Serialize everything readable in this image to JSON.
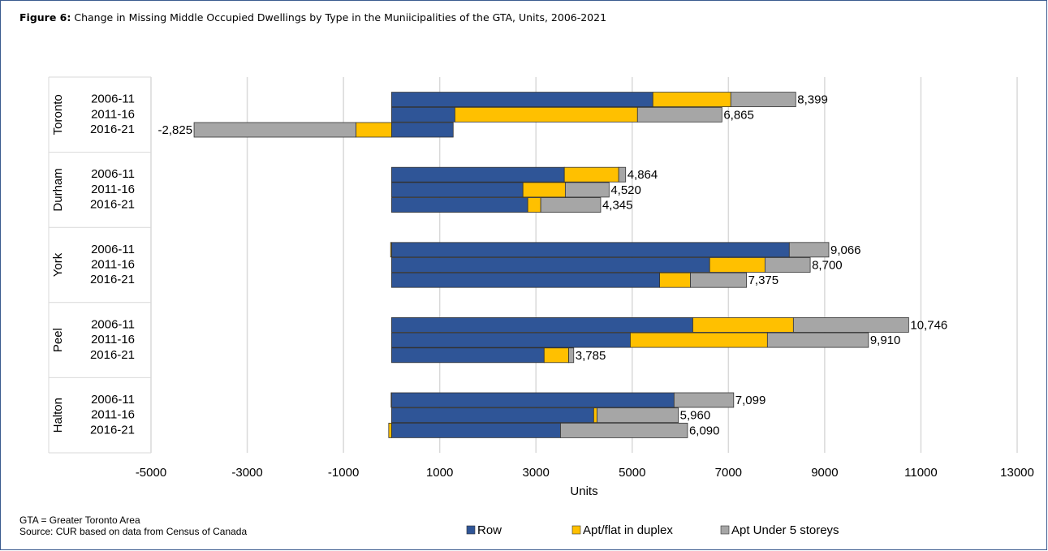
{
  "chart_data": {
    "type": "bar",
    "orientation": "horizontal",
    "stacked": true,
    "figure_label": "Figure 6:",
    "title": "Change in Missing Middle Occupied Dwellings by Type in the Muniicipalities of the GTA, Units, 2006-2021",
    "groups": [
      "Toronto",
      "Durham",
      "York",
      "Peel",
      "Halton"
    ],
    "categories": [
      "2006-11",
      "2011-16",
      "2016-21",
      "2006-11",
      "2011-16",
      "2016-21",
      "2006-11",
      "2011-16",
      "2016-21",
      "2006-11",
      "2011-16",
      "2016-21",
      "2006-11",
      "2011-16",
      "2016-21"
    ],
    "series": [
      {
        "name": "Row",
        "color": "#2f5597",
        "values": [
          5430,
          1316,
          1280,
          3590,
          2730,
          2830,
          8265,
          6610,
          5570,
          6260,
          4960,
          3170,
          5870,
          4200,
          3510
        ]
      },
      {
        "name": "Apt/flat in duplex",
        "color": "#ffc000",
        "values": [
          1620,
          3794,
          -740,
          1130,
          880,
          270,
          -20,
          1150,
          640,
          2090,
          2850,
          510,
          -10,
          70,
          -60
        ]
      },
      {
        "name": "Apt Under 5 storeys",
        "color": "#a6a6a6",
        "values": [
          1349,
          1755,
          -3365,
          144,
          910,
          1245,
          821,
          940,
          1165,
          2396,
          2100,
          105,
          1239,
          1690,
          2640
        ]
      }
    ],
    "totals": [
      8399,
      6865,
      -2825,
      4864,
      4520,
      4345,
      9066,
      8700,
      7375,
      10746,
      9910,
      3785,
      7099,
      5960,
      6090
    ],
    "total_labels": [
      "8,399",
      "6,865",
      "-2,825",
      "4,864",
      "4,520",
      "4,345",
      "9,066",
      "8,700",
      "7,375",
      "10,746",
      "9,910",
      "3,785",
      "7,099",
      "5,960",
      "6,090"
    ],
    "xlabel": "Units",
    "xlim": [
      -5000,
      13000
    ],
    "xticks": [
      -5000,
      -3000,
      -1000,
      1000,
      3000,
      5000,
      7000,
      9000,
      11000,
      13000
    ],
    "grid": true,
    "legend": "bottom",
    "notes": [
      "GTA = Greater Toronto Area",
      "Source: CUR based on data from Census of Canada"
    ]
  }
}
